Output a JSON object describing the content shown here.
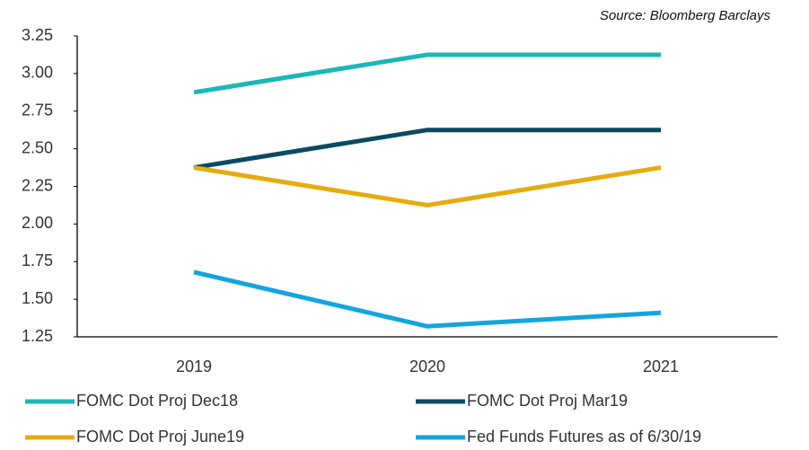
{
  "chart_data": {
    "type": "line",
    "source": "Source: Bloomberg Barclays",
    "categories": [
      "2019",
      "2020",
      "2021"
    ],
    "series": [
      {
        "name": "FOMC Dot Proj Dec18",
        "color": "#1ab7b7",
        "values": [
          2.875,
          3.125,
          3.125
        ]
      },
      {
        "name": "FOMC Dot Proj Mar19",
        "color": "#0b4a63",
        "values": [
          2.375,
          2.625,
          2.625
        ]
      },
      {
        "name": "FOMC Dot Proj June19",
        "color": "#e5ac0f",
        "values": [
          2.375,
          2.125,
          2.375
        ]
      },
      {
        "name": "Fed Funds Futures as of 6/30/19",
        "color": "#13a5df",
        "values": [
          1.68,
          1.32,
          1.41
        ]
      }
    ],
    "ylim": [
      1.25,
      3.25
    ],
    "yticks": [
      1.25,
      {
        "value": 1.5,
        "label": "1.50"
      },
      1.75,
      {
        "value": 2,
        "label": "2.00"
      },
      2.25,
      {
        "value": 2.5,
        "label": "2.50"
      },
      2.75,
      {
        "value": 3,
        "label": "3.00"
      },
      3.25
    ],
    "grid": false,
    "legend": "bottom"
  }
}
